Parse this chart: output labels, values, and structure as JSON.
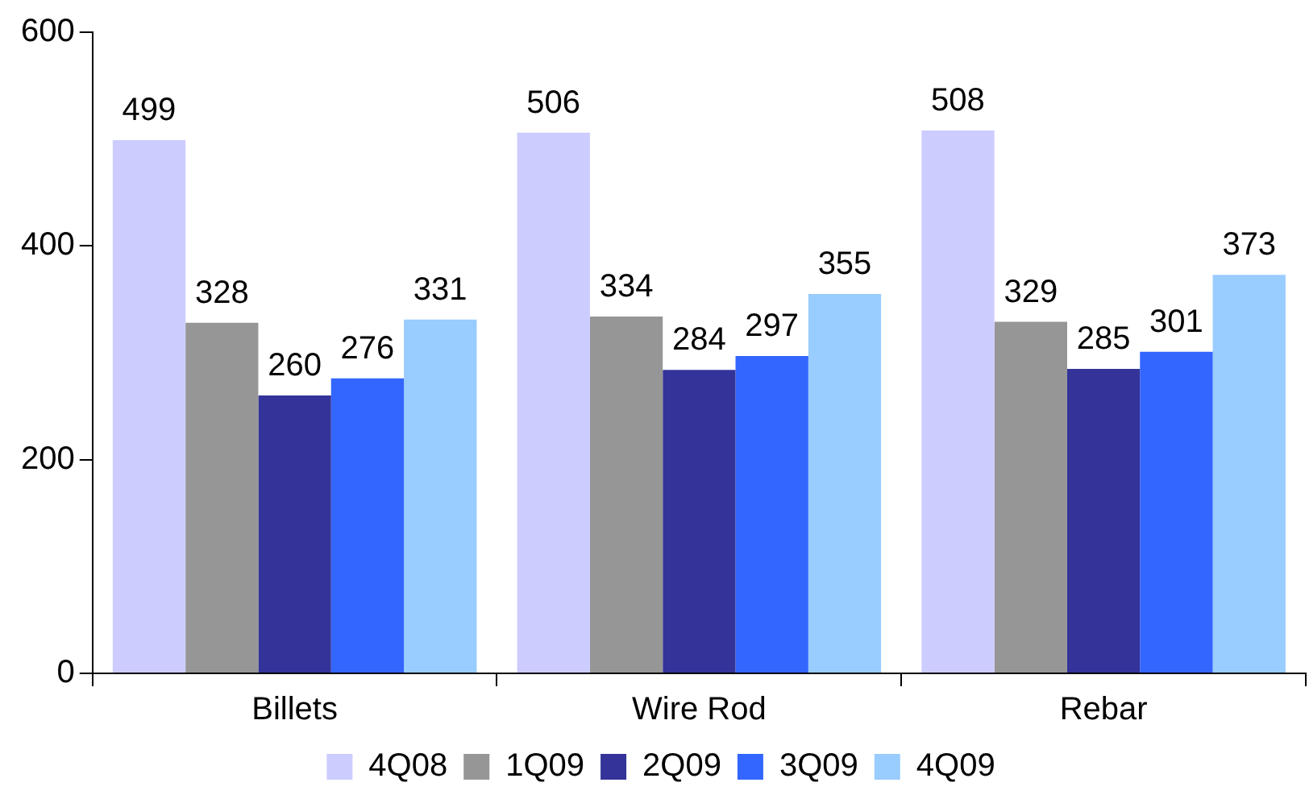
{
  "chart_data": {
    "type": "bar",
    "categories": [
      "Billets",
      "Wire Rod",
      "Rebar"
    ],
    "series": [
      {
        "name": "4Q08",
        "color": "#ccccff",
        "values": [
          499,
          506,
          508
        ]
      },
      {
        "name": "1Q09",
        "color": "#969696",
        "values": [
          328,
          334,
          329
        ]
      },
      {
        "name": "2Q09",
        "color": "#333399",
        "values": [
          260,
          284,
          285
        ]
      },
      {
        "name": "3Q09",
        "color": "#3366ff",
        "values": [
          276,
          297,
          301
        ]
      },
      {
        "name": "4Q09",
        "color": "#99ccff",
        "values": [
          331,
          355,
          373
        ]
      }
    ],
    "ylim": [
      0,
      600
    ],
    "yticks": [
      0,
      200,
      400,
      600
    ],
    "grid": false,
    "legend": "bottom",
    "data_labels": true
  }
}
